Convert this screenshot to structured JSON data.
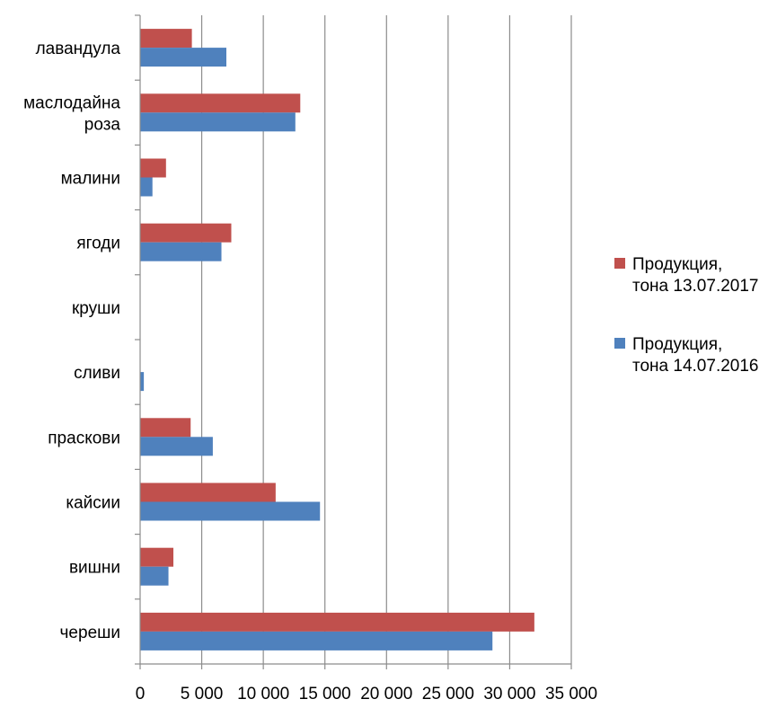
{
  "chart_data": {
    "type": "bar",
    "orientation": "horizontal",
    "title": "",
    "xlabel": "",
    "ylabel": "",
    "xlim": [
      0,
      35000
    ],
    "grid": true,
    "legend_position": "right",
    "categories": [
      [
        "лавандула"
      ],
      [
        "маслодайна",
        "роза"
      ],
      [
        "малини"
      ],
      [
        "ягоди"
      ],
      [
        "круши"
      ],
      [
        "сливи"
      ],
      [
        "праскови"
      ],
      [
        "кайсии"
      ],
      [
        "вишни"
      ],
      [
        "череши"
      ]
    ],
    "tick_labels": [
      "0",
      "5 000",
      "10 000",
      "15 000",
      "20 000",
      "25 000",
      "30 000",
      "35 000"
    ],
    "tick_values": [
      0,
      5000,
      10000,
      15000,
      20000,
      25000,
      30000,
      35000
    ],
    "series": [
      {
        "name": [
          "Продукция,",
          "тона 13.07.2017"
        ],
        "color": "#c0504d",
        "values": [
          4200,
          13000,
          2100,
          7400,
          0,
          0,
          4100,
          11000,
          2700,
          32000
        ]
      },
      {
        "name": [
          "Продукция,",
          "тона 14.07.2016"
        ],
        "color": "#4f81bd",
        "values": [
          7000,
          12600,
          1000,
          6600,
          0,
          300,
          5900,
          14600,
          2300,
          28600
        ]
      }
    ]
  }
}
